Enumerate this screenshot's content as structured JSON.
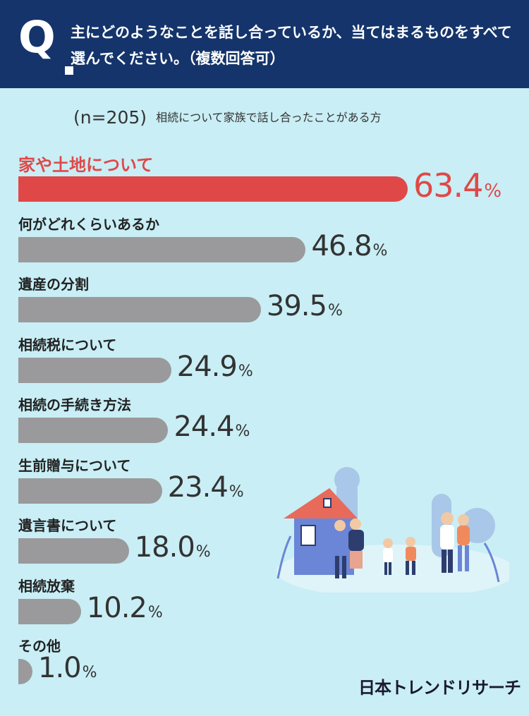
{
  "header": {
    "q_letter": "Q",
    "question": "主にどのようなことを話し合っているか、当てはまるものをすべて選んでください。（複数回答可）"
  },
  "sample": {
    "n_label": "(n=205)",
    "description": "相続について家族で話し合ったことがある方"
  },
  "chart_data": {
    "type": "bar",
    "orientation": "horizontal",
    "categories": [
      "家や土地について",
      "何がどれくらいあるか",
      "遺産の分割",
      "相続税について",
      "相続の手続き方法",
      "生前贈与について",
      "遺言書について",
      "相続放棄",
      "その他"
    ],
    "values": [
      63.4,
      46.8,
      39.5,
      24.9,
      24.4,
      23.4,
      18.0,
      10.2,
      1.0
    ],
    "value_labels": [
      "63.4",
      "46.8",
      "39.5",
      "24.9",
      "24.4",
      "23.4",
      "18.0",
      "10.2",
      "1.0"
    ],
    "unit": "%",
    "highlight_index": 0,
    "colors": {
      "highlight": "#e04848",
      "default": "#9a9a9c"
    }
  },
  "illustration": {
    "icon": "family-house-illustration"
  },
  "brand": "日本トレンドリサーチ",
  "colors": {
    "header_bg": "#14346b",
    "page_bg": "#c9eef5"
  }
}
